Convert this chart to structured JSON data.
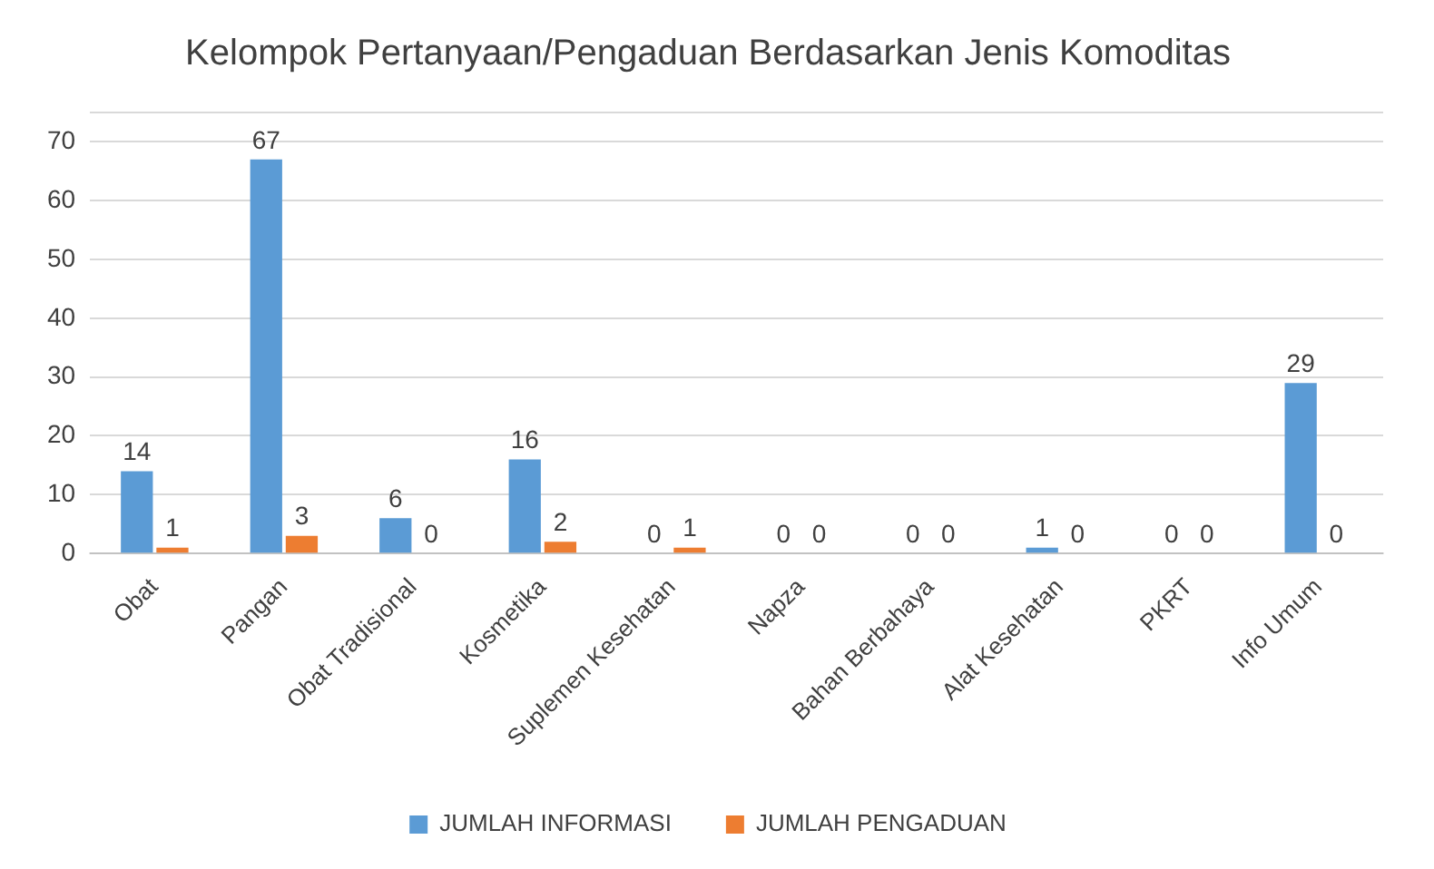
{
  "chart_data": {
    "type": "bar",
    "title": "Kelompok Pertanyaan/Pengaduan Berdasarkan Jenis Komoditas",
    "categories": [
      "Obat",
      "Pangan",
      "Obat Tradisional",
      "Kosmetika",
      "Suplemen Kesehatan",
      "Napza",
      "Bahan Berbahaya",
      "Alat Kesehatan",
      "PKRT",
      "Info Umum"
    ],
    "series": [
      {
        "name": "JUMLAH INFORMASI",
        "color": "#5b9bd5",
        "values": [
          14,
          67,
          6,
          16,
          0,
          0,
          0,
          1,
          0,
          29
        ]
      },
      {
        "name": "JUMLAH PENGADUAN",
        "color": "#ed7d31",
        "values": [
          1,
          3,
          0,
          2,
          1,
          0,
          0,
          0,
          0,
          0
        ]
      }
    ],
    "ylim": [
      0,
      75
    ],
    "yticks": [
      0,
      10,
      20,
      30,
      40,
      50,
      60,
      70,
      {
        "value": 75,
        "label": null
      }
    ],
    "grid": "y",
    "legend": "bottom",
    "data_labels": true
  }
}
